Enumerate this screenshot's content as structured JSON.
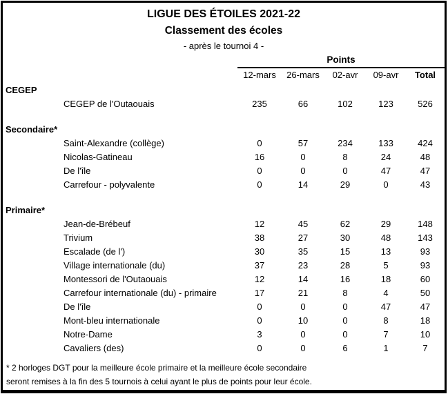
{
  "header": {
    "title": "LIGUE DES ÉTOILES 2021-22",
    "subtitle": "Classement des écoles",
    "note": "- après le tournoi 4 -"
  },
  "table": {
    "points_label": "Points",
    "columns": [
      "12-mars",
      "26-mars",
      "02-avr",
      "09-avr",
      "Total"
    ],
    "sections": [
      {
        "label": "CEGEP",
        "rows": [
          {
            "name": "CEGEP de l'Outaouais",
            "values": [
              235,
              66,
              102,
              123,
              526
            ]
          }
        ]
      },
      {
        "label": "Secondaire*",
        "rows": [
          {
            "name": "Saint-Alexandre (collège)",
            "values": [
              0,
              57,
              234,
              133,
              424
            ]
          },
          {
            "name": "Nicolas-Gatineau",
            "values": [
              16,
              0,
              8,
              24,
              48
            ]
          },
          {
            "name": "De l'île",
            "values": [
              0,
              0,
              0,
              47,
              47
            ]
          },
          {
            "name": "Carrefour - polyvalente",
            "values": [
              0,
              14,
              29,
              0,
              43
            ]
          }
        ]
      },
      {
        "label": "Primaire*",
        "rows": [
          {
            "name": "Jean-de-Brébeuf",
            "values": [
              12,
              45,
              62,
              29,
              148
            ]
          },
          {
            "name": "Trivium",
            "values": [
              38,
              27,
              30,
              48,
              143
            ]
          },
          {
            "name": "Escalade (de l')",
            "values": [
              30,
              35,
              15,
              13,
              93
            ]
          },
          {
            "name": "Village internationale (du)",
            "values": [
              37,
              23,
              28,
              5,
              93
            ]
          },
          {
            "name": "Montessori de l'Outaouais",
            "values": [
              12,
              14,
              16,
              18,
              60
            ]
          },
          {
            "name": "Carrefour internationale (du) - primaire",
            "values": [
              17,
              21,
              8,
              4,
              50
            ]
          },
          {
            "name": "De l'île",
            "values": [
              0,
              0,
              0,
              47,
              47
            ]
          },
          {
            "name": "Mont-bleu internationale",
            "values": [
              0,
              10,
              0,
              8,
              18
            ]
          },
          {
            "name": "Notre-Dame",
            "values": [
              3,
              0,
              0,
              7,
              10
            ]
          },
          {
            "name": "Cavaliers (des)",
            "values": [
              0,
              0,
              6,
              1,
              7
            ]
          }
        ]
      }
    ]
  },
  "footnote": {
    "line1": "* 2 horloges DGT pour la meilleure école primaire et la meilleure école secondaire",
    "line2": "seront remises à la fin des 5 tournois à celui ayant le plus de points pour leur école."
  },
  "colors": {
    "text": "#000000",
    "background": "#ffffff",
    "border": "#000000"
  }
}
